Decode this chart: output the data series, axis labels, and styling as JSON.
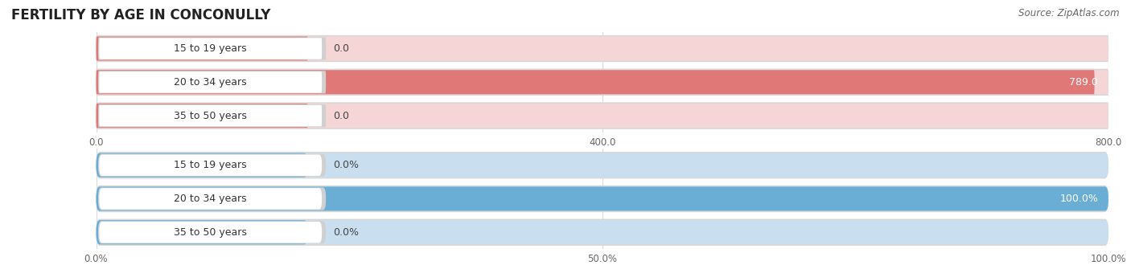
{
  "title": "FERTILITY BY AGE IN CONCONULLY",
  "source": "Source: ZipAtlas.com",
  "top_chart": {
    "categories": [
      "15 to 19 years",
      "20 to 34 years",
      "35 to 50 years"
    ],
    "values": [
      0.0,
      789.0,
      0.0
    ],
    "xlim": [
      0,
      800.0
    ],
    "xticks": [
      0.0,
      400.0,
      800.0
    ],
    "bar_color": "#e07878",
    "bar_bg_color": "#f5d5d5",
    "label_pill_color": "#ffffff",
    "border_color": "#d8b0b0"
  },
  "bottom_chart": {
    "categories": [
      "15 to 19 years",
      "20 to 34 years",
      "35 to 50 years"
    ],
    "values": [
      0.0,
      100.0,
      0.0
    ],
    "xlim": [
      0,
      100.0
    ],
    "xticks": [
      0.0,
      50.0,
      100.0
    ],
    "bar_color": "#6aaed6",
    "bar_bg_color": "#c9dff0",
    "label_pill_color": "#ffffff",
    "border_color": "#a0bdd8"
  },
  "title_fontsize": 12,
  "source_fontsize": 8.5,
  "label_fontsize": 9,
  "tick_fontsize": 8.5,
  "background_color": "#ffffff",
  "grid_color": "#d0d0d0",
  "outer_bg_color": "#f0f0f0"
}
